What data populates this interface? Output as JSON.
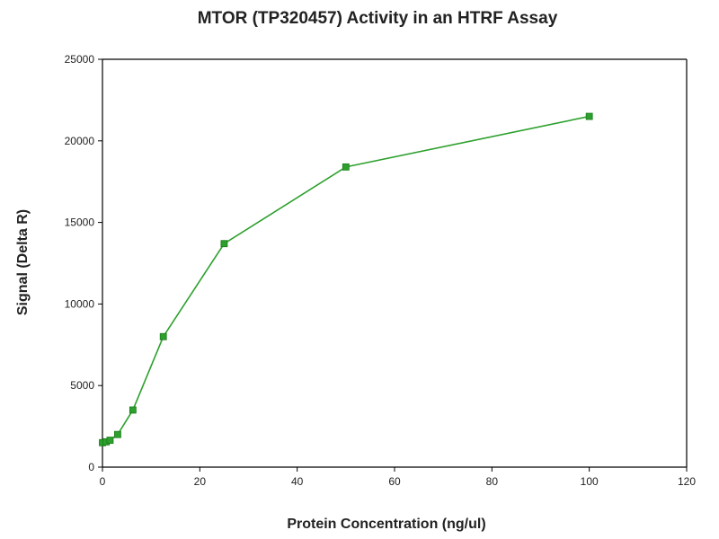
{
  "chart_data": {
    "type": "line",
    "title": "MTOR (TP320457) Activity in an HTRF Assay",
    "xlabel": "Protein Concentration (ng/ul)",
    "ylabel": "Signal (Delta R)",
    "xlim": [
      0,
      120
    ],
    "ylim": [
      0,
      25000
    ],
    "x_ticks": [
      0,
      20,
      40,
      60,
      80,
      100,
      120
    ],
    "y_ticks": [
      0,
      5000,
      10000,
      15000,
      20000,
      25000
    ],
    "grid": false,
    "legend": "none",
    "series": [
      {
        "color": "#2ca02c",
        "x": [
          0,
          0.78,
          1.56,
          3.125,
          6.25,
          12.5,
          25,
          50,
          100
        ],
        "y": [
          1500,
          1550,
          1650,
          2000,
          3500,
          8000,
          13700,
          18400,
          21500
        ]
      }
    ]
  }
}
